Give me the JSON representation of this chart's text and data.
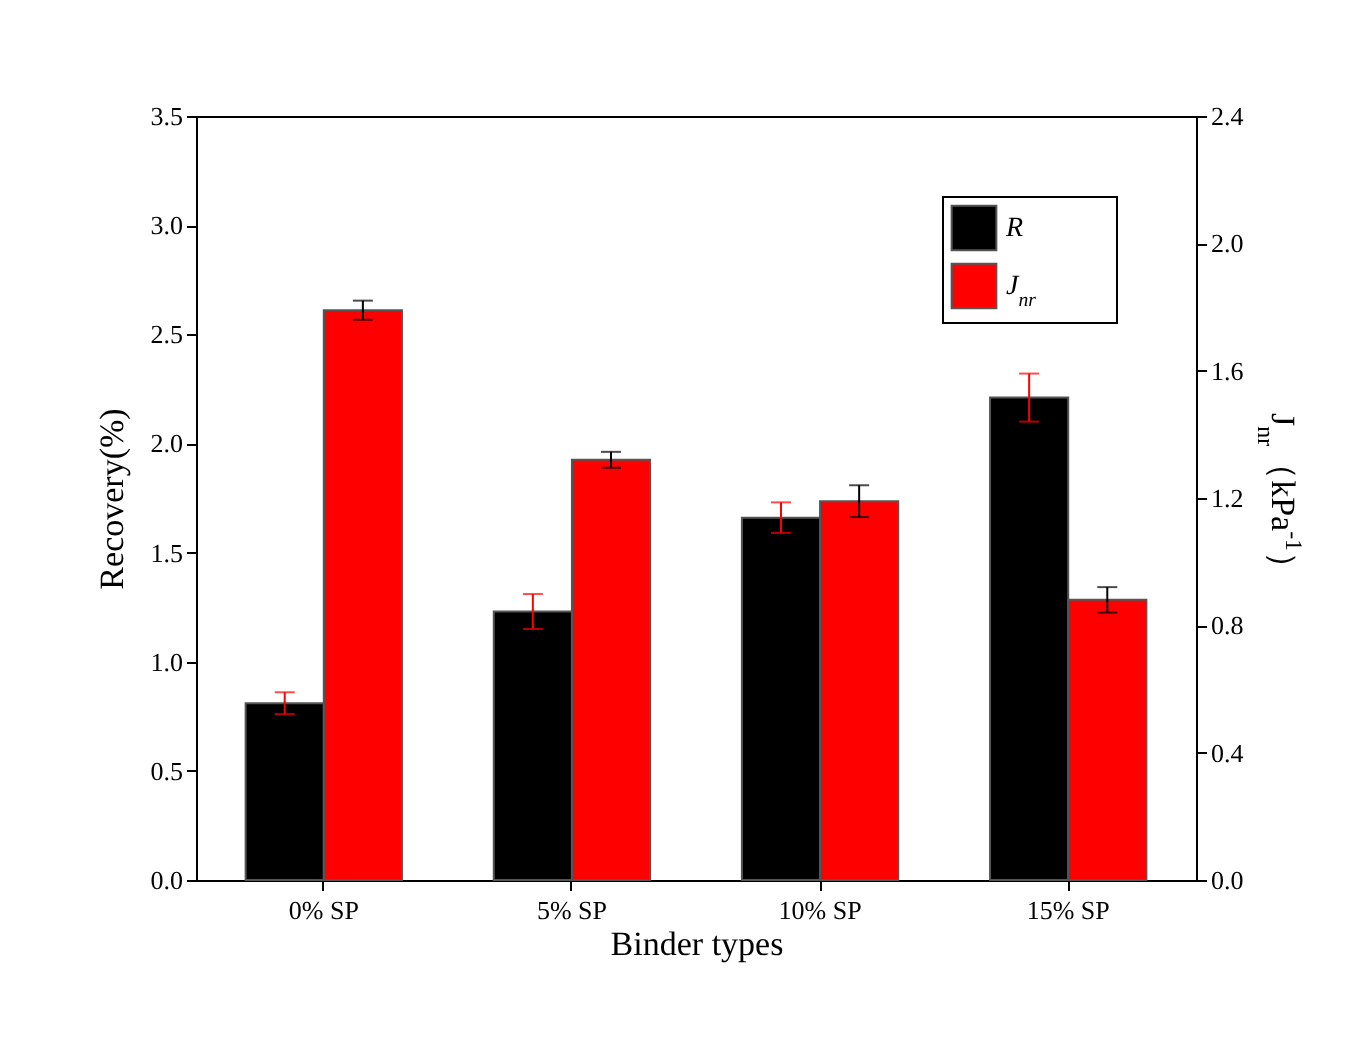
{
  "chart_data": {
    "type": "bar",
    "xlabel": "Binder types",
    "ylabel": "Recovery(%)",
    "y2label": "J$_{nr}$（kPa$^{-1}$）",
    "categories": [
      "0% SP",
      "5% SP",
      "10% SP",
      "15% SP"
    ],
    "series": [
      {
        "name": "R",
        "color": "#000000",
        "values": [
          0.81,
          1.23,
          1.66,
          2.21
        ],
        "errors": [
          0.05,
          0.08,
          0.07,
          0.11
        ]
      },
      {
        "name": "J$_{nr}$",
        "color": "#ff0000",
        "axis": "y2",
        "values": [
          1.79,
          1.32,
          1.19,
          0.88
        ],
        "errors": [
          0.03,
          0.025,
          0.05,
          0.04
        ]
      }
    ],
    "ylim": [
      0,
      3.5
    ],
    "yticks": [
      {
        "value": 0,
        "label": "0.0"
      },
      0.5,
      {
        "value": 1,
        "label": "1.0"
      },
      1.5,
      {
        "value": 2,
        "label": "2.0"
      },
      2.5,
      {
        "value": 3,
        "label": "3.0"
      },
      3.5
    ],
    "y2lim": [
      0,
      2.4
    ],
    "y2ticks": [
      {
        "value": 0,
        "label": "0.0"
      },
      0.4,
      0.8,
      1.2,
      1.6,
      {
        "value": 2,
        "label": "2.0"
      },
      2.4
    ],
    "grid": false,
    "legend": "top right"
  }
}
